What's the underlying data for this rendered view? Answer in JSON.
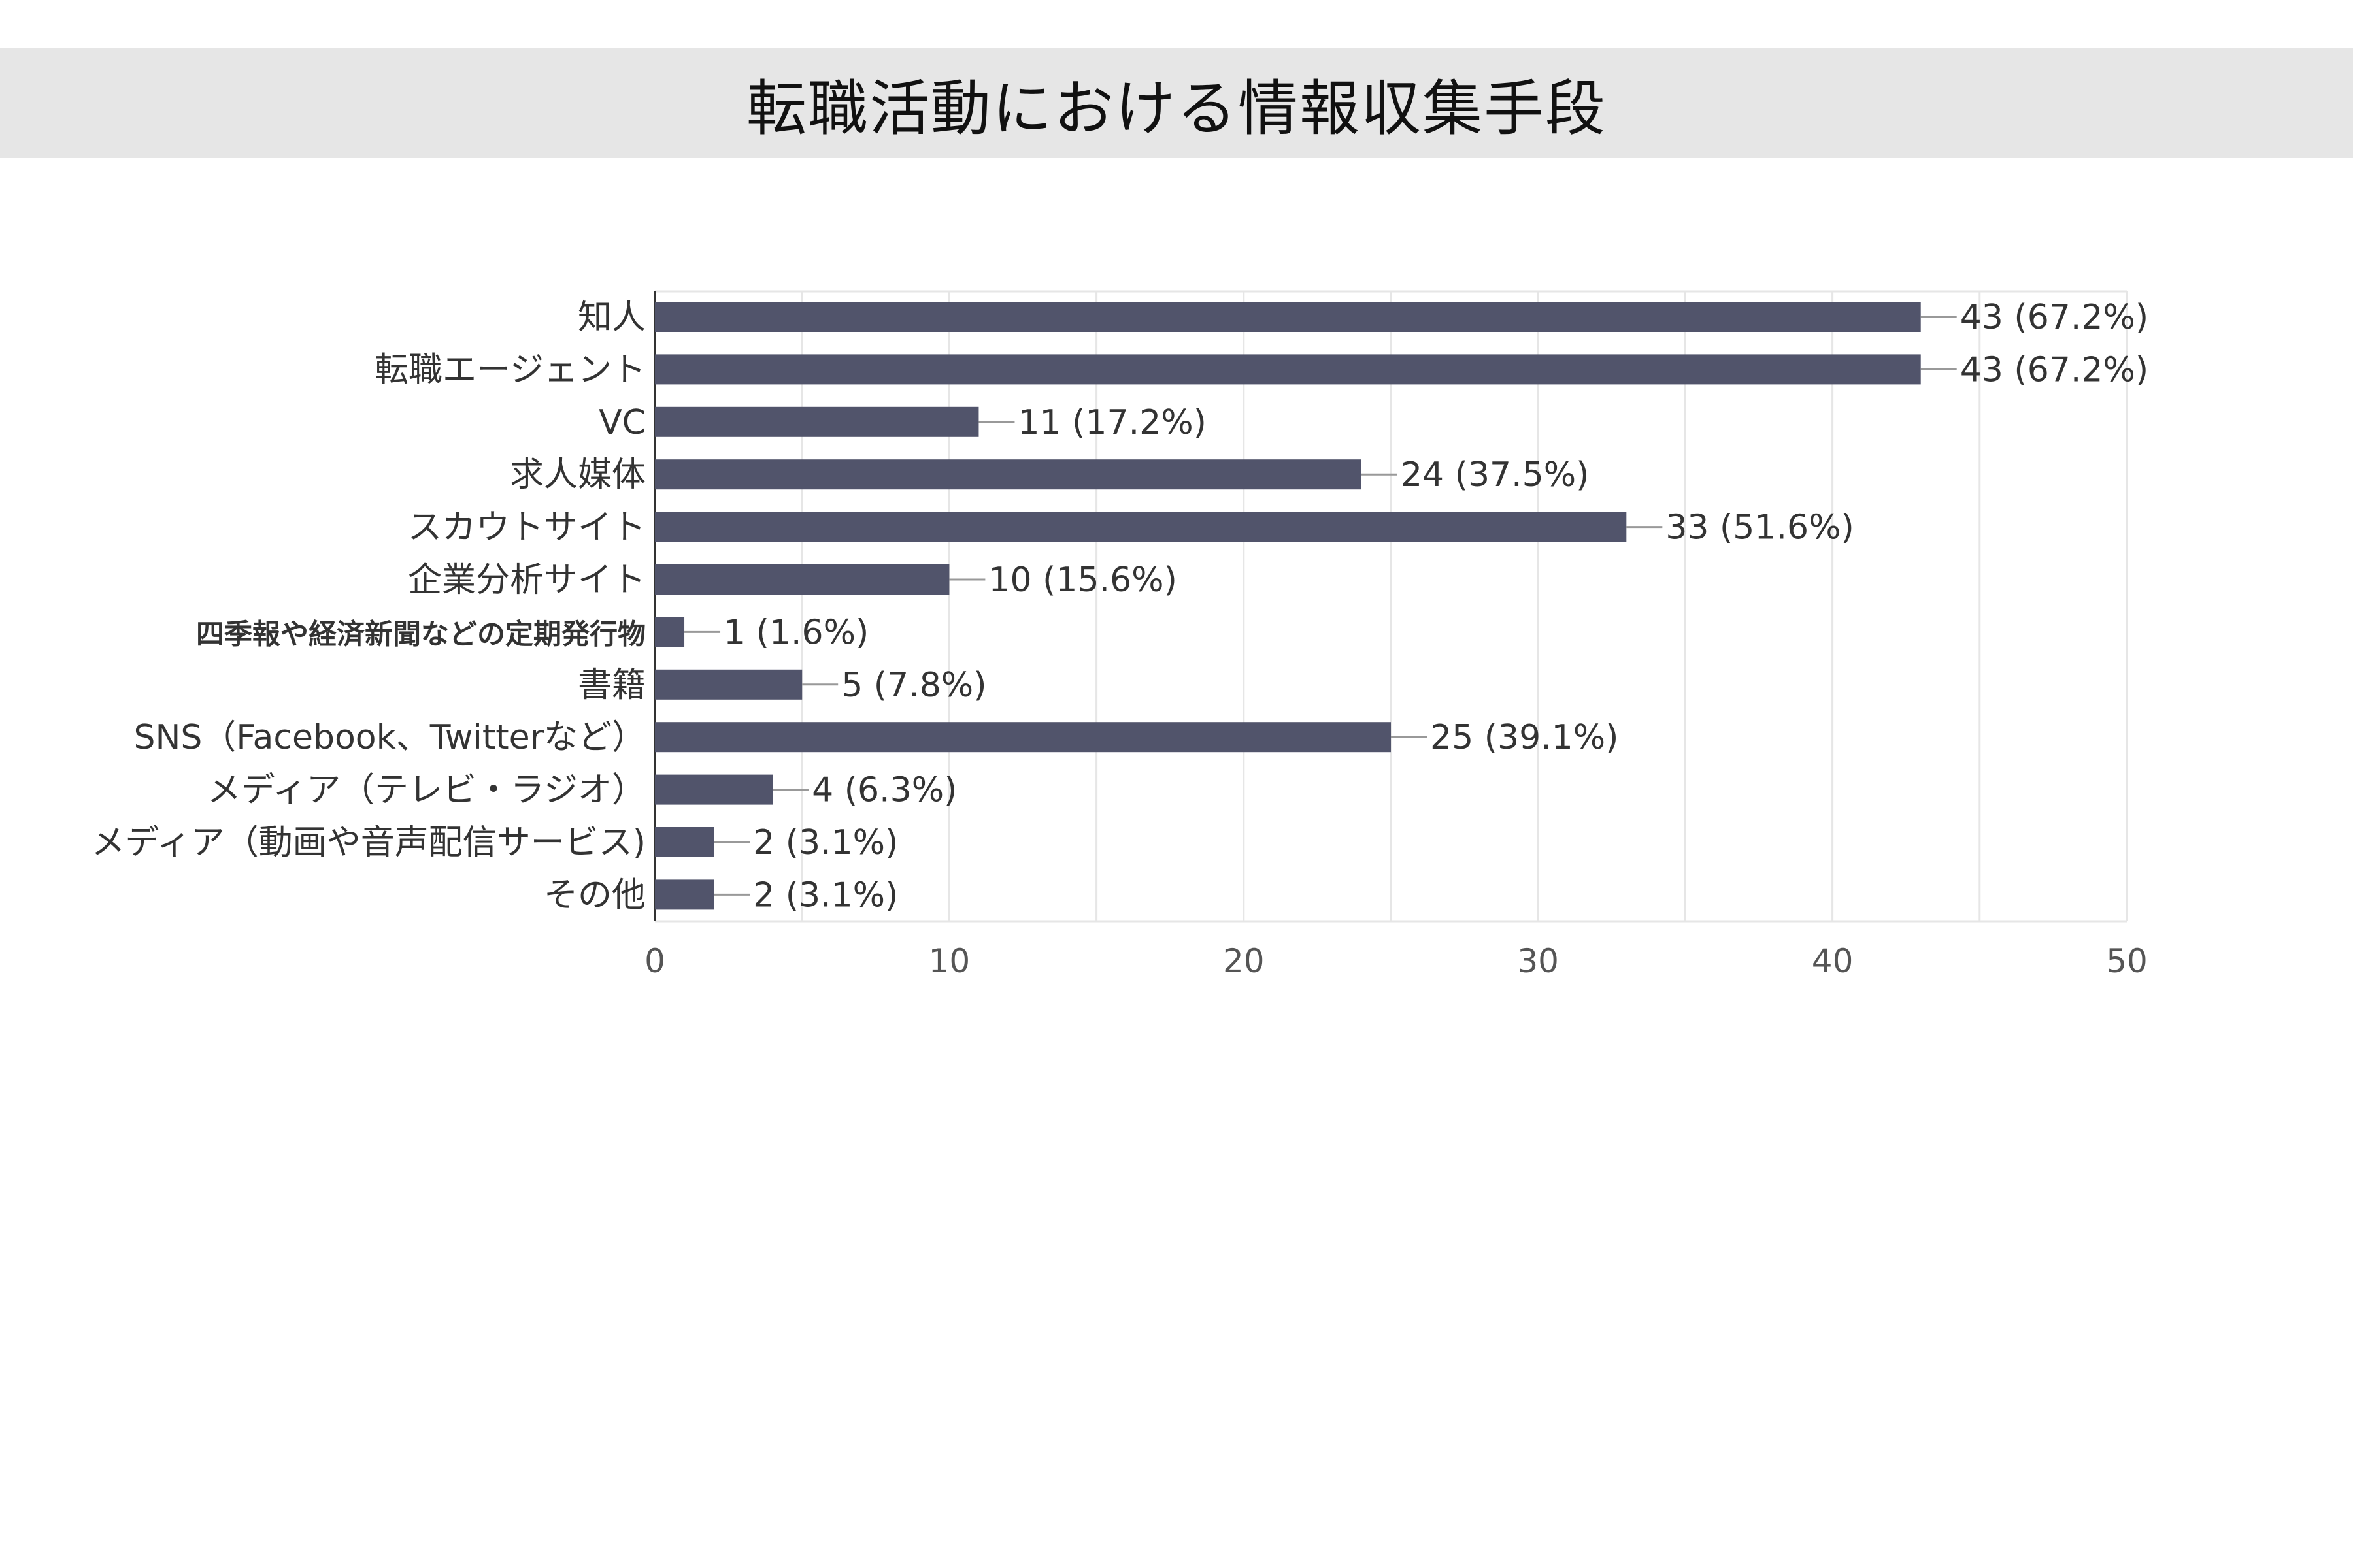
{
  "title": "転職活動における情報収集手段",
  "colors": {
    "bar": "#51546b",
    "grid": "#e6e6e6",
    "axis": "#333333",
    "leader": "#999999",
    "title_band": "#e6e6e6"
  },
  "chart_data": {
    "type": "bar",
    "orientation": "horizontal",
    "title": "転職活動における情報収集手段",
    "xlim": [
      0,
      50
    ],
    "x_ticks": [
      "0",
      "10",
      "20",
      "30",
      "40",
      "50"
    ],
    "grid": true,
    "categories": [
      "知人",
      "転職エージェント",
      "VC",
      "求人媒体",
      "スカウトサイト",
      "企業分析サイト",
      "四季報や経済新聞などの定期発行物",
      "書籍",
      "SNS（Facebook、Twitterなど）",
      "メディア（テレビ・ラジオ）",
      "メディア（動画や音声配信サービス)",
      "その他"
    ],
    "values": [
      43,
      43,
      11,
      24,
      33,
      10,
      1,
      5,
      25,
      4,
      2,
      2
    ],
    "data_labels": [
      "43 (67.2%)",
      "43 (67.2%)",
      "11 (17.2%)",
      "24 (37.5%)",
      "33 (51.6%)",
      "10 (15.6%)",
      "1 (1.6%)",
      "5 (7.8%)",
      "25 (39.1%)",
      "4 (6.3%)",
      "2 (3.1%)",
      "2 (3.1%)"
    ]
  }
}
